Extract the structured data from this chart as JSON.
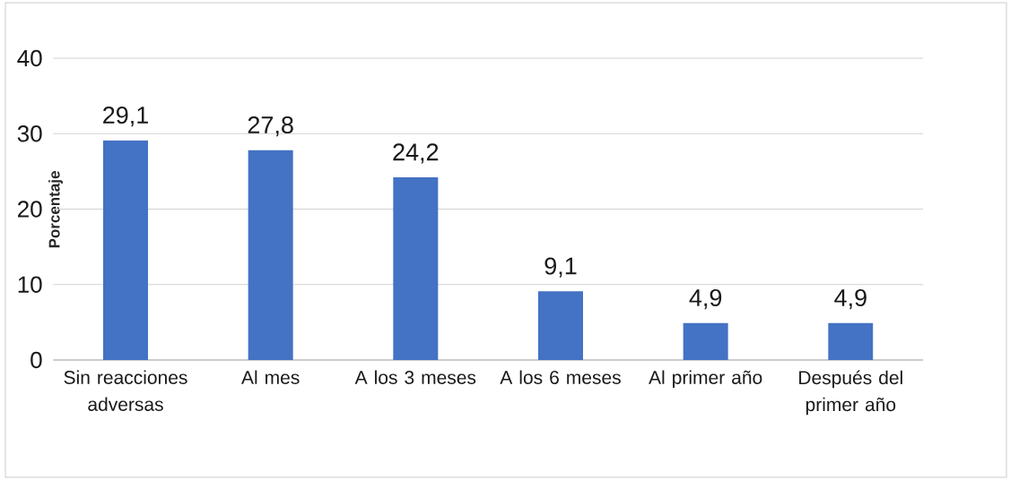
{
  "chart_data": {
    "type": "bar",
    "ylabel": "Porcentaje",
    "categories": [
      "Sin reacciones adversas",
      "Al mes",
      "A los 3 meses",
      "A los 6 meses",
      "Al primer año",
      "Después del primer año"
    ],
    "values": [
      29.1,
      27.8,
      24.2,
      9.1,
      4.9,
      4.9
    ],
    "value_labels": [
      "29,1",
      "27,8",
      "24,2",
      "9,1",
      "4,9",
      "4,9"
    ],
    "color": "#4472c4",
    "ylim": [
      0,
      40
    ],
    "yticks": [
      0,
      10,
      20,
      30,
      40
    ],
    "grid": "y"
  }
}
